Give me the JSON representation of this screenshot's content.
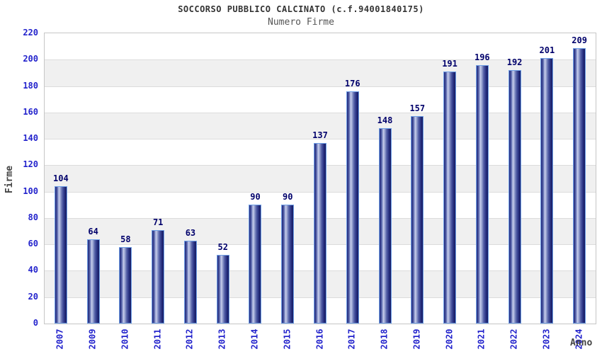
{
  "chart_data": {
    "type": "bar",
    "title": "SOCCORSO PUBBLICO CALCINATO (c.f.94001840175)",
    "subtitle": "Numero Firme",
    "xlabel": "Anno",
    "ylabel": "Firme",
    "categories": [
      "2007",
      "2009",
      "2010",
      "2011",
      "2012",
      "2013",
      "2014",
      "2015",
      "2016",
      "2017",
      "2018",
      "2019",
      "2020",
      "2021",
      "2022",
      "2023",
      "2024"
    ],
    "values": [
      104,
      64,
      58,
      71,
      63,
      52,
      90,
      90,
      137,
      176,
      148,
      157,
      191,
      196,
      192,
      201,
      209
    ],
    "ylim": [
      0,
      220
    ],
    "ytick_step": 20,
    "yticks": [
      0,
      20,
      40,
      60,
      80,
      100,
      120,
      140,
      160,
      180,
      200,
      220
    ],
    "grid": true,
    "legend": "none",
    "band_fill": "alternating 20-unit horizontal bands",
    "colors": {
      "tick_label": "#2323cc",
      "value_label": "#00006b",
      "title": "#333333",
      "subtitle": "#555555",
      "axis_title": "#444444",
      "band": "#f0f0f0",
      "gridline": "#dcdcdc",
      "plot_border": "#c6c6c6",
      "bar_dark": "#252c80",
      "bar_highlight": "#c7cdeb",
      "bar_border": "#6f9fe6"
    }
  }
}
